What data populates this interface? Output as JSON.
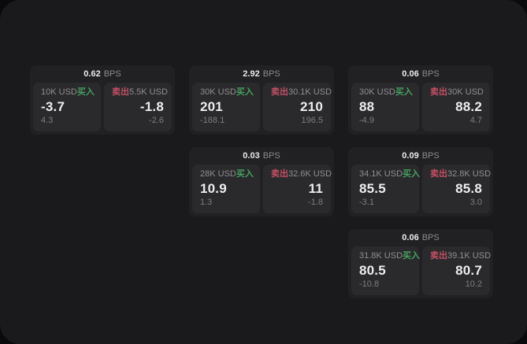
{
  "labels": {
    "bps_unit": "BPS",
    "buy": "买入",
    "sell": "卖出"
  },
  "colors": {
    "window_background": "#1a1a1c",
    "card_background": "#212124",
    "panel_background": "#2a2a2d",
    "buy_green": "#46a05e",
    "sell_red": "#c25063",
    "primary_text": "#ededee",
    "secondary_text": "#8e8e91"
  },
  "cards": [
    {
      "bps": "0.62",
      "buy": {
        "amount": "10K USD",
        "price": "-3.7",
        "change": "4.3"
      },
      "sell": {
        "amount": "5.5K USD",
        "price": "-1.8",
        "change": "-2.6"
      }
    },
    {
      "bps": "2.92",
      "buy": {
        "amount": "30K USD",
        "price": "201",
        "change": "-188.1"
      },
      "sell": {
        "amount": "30.1K USD",
        "price": "210",
        "change": "196.5"
      }
    },
    {
      "bps": "0.06",
      "buy": {
        "amount": "30K USD",
        "price": "88",
        "change": "-4.9"
      },
      "sell": {
        "amount": "30K USD",
        "price": "88.2",
        "change": "4.7"
      }
    },
    {
      "bps": "0.03",
      "buy": {
        "amount": "28K USD",
        "price": "10.9",
        "change": "1.3"
      },
      "sell": {
        "amount": "32.6K USD",
        "price": "11",
        "change": "-1.8"
      }
    },
    {
      "bps": "0.09",
      "buy": {
        "amount": "34.1K USD",
        "price": "85.5",
        "change": "-3.1"
      },
      "sell": {
        "amount": "32.8K USD",
        "price": "85.8",
        "change": "3.0"
      }
    },
    {
      "bps": "0.06",
      "buy": {
        "amount": "31.8K USD",
        "price": "80.5",
        "change": "-10.8"
      },
      "sell": {
        "amount": "39.1K USD",
        "price": "80.7",
        "change": "10.2"
      }
    }
  ]
}
